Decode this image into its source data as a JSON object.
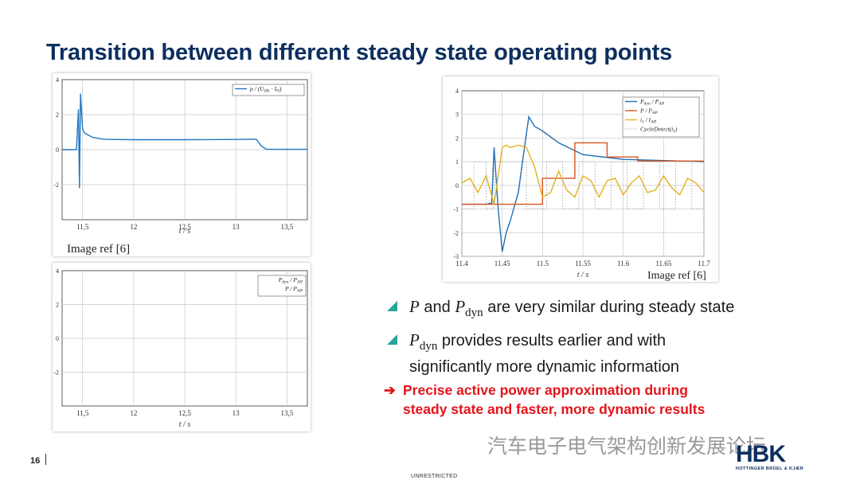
{
  "slide": {
    "title": "Transition between different steady state operating points",
    "page_number": "16",
    "classification": "UNRESTRICTED",
    "watermark": "汽车电子电气架构创新发展论坛",
    "logo": {
      "text": "HBK",
      "subtitle": "HOTTINGER BRÜEL & KJÆR"
    }
  },
  "bullets": [
    {
      "parts": [
        {
          "math": "P"
        },
        {
          "text": " and "
        },
        {
          "math": "P",
          "sub": "dyn"
        },
        {
          "text": " are very similar during steady state"
        }
      ]
    },
    {
      "parts": [
        {
          "math": "P",
          "sub": "dyn"
        },
        {
          "text": " provides results earlier and with"
        }
      ],
      "line2": "significantly more dynamic information"
    }
  ],
  "conclusion": {
    "arrow": "➔",
    "line1": "Precise active power approximation during",
    "line2": "steady state and faster, more dynamic results"
  },
  "image_refs": {
    "left": "Image ref [6]",
    "right": "Image ref [6]"
  },
  "chart_data": [
    {
      "type": "line",
      "xlabel": "t / s",
      "xlim": [
        11.3,
        13.7
      ],
      "ylim": [
        -4,
        4
      ],
      "xticks": [
        "11,5",
        "12",
        "12,5",
        "13",
        "13,5"
      ],
      "xtick_values": [
        11.5,
        12,
        12.5,
        13,
        13.5
      ],
      "yticks": [
        "4",
        "2",
        "0",
        "-2"
      ],
      "ytick_values": [
        4,
        2,
        0,
        -2
      ],
      "grid": true,
      "legend_position": "top-right",
      "series": [
        {
          "name": "p / (U_ZK · I_N)",
          "color": "#1f77c0",
          "x": [
            11.3,
            11.44,
            11.46,
            11.47,
            11.48,
            11.5,
            11.52,
            11.55,
            11.6,
            11.7,
            11.8,
            12.0,
            12.5,
            13.0,
            13.2,
            13.25,
            13.3,
            13.7
          ],
          "y": [
            0,
            0,
            2.3,
            -2.2,
            3.2,
            1.2,
            0.95,
            0.85,
            0.7,
            0.6,
            0.58,
            0.57,
            0.57,
            0.58,
            0.6,
            0.2,
            0.02,
            0.02
          ]
        }
      ]
    },
    {
      "type": "line",
      "xlabel": "t / s",
      "xlim": [
        11.3,
        13.7
      ],
      "ylim": [
        -4,
        4
      ],
      "xticks": [
        "11,5",
        "12",
        "12,5",
        "13",
        "13,5"
      ],
      "xtick_values": [
        11.5,
        12,
        12.5,
        13,
        13.5
      ],
      "yticks": [
        "4",
        "2",
        "0",
        "-2"
      ],
      "ytick_values": [
        4,
        2,
        0,
        -2
      ],
      "grid": true,
      "legend_position": "top-right",
      "series": [
        {
          "name": "P_dyn / P_AP",
          "color": "#000000",
          "x": [],
          "y": []
        },
        {
          "name": "P / P_AP",
          "color": "#000000",
          "x": [],
          "y": []
        }
      ]
    },
    {
      "type": "line",
      "xlabel": "t / s",
      "xlim": [
        11.4,
        11.7
      ],
      "ylim": [
        -3,
        4
      ],
      "xticks": [
        "11.4",
        "11.45",
        "11.5",
        "11.55",
        "11.6",
        "11.65",
        "11.7"
      ],
      "xtick_values": [
        11.4,
        11.45,
        11.5,
        11.55,
        11.6,
        11.65,
        11.7
      ],
      "yticks": [
        "4",
        "3",
        "2",
        "1",
        "0",
        "-1",
        "-2",
        "-3"
      ],
      "ytick_values": [
        4,
        3,
        2,
        1,
        0,
        -1,
        -2,
        -3
      ],
      "grid": true,
      "legend_position": "top-right",
      "series": [
        {
          "name": "P_dyn / P_AP",
          "color": "#1f6fb5",
          "x": [
            11.4,
            11.43,
            11.437,
            11.44,
            11.445,
            11.45,
            11.455,
            11.46,
            11.47,
            11.48,
            11.483,
            11.49,
            11.5,
            11.52,
            11.55,
            11.6,
            11.65,
            11.7
          ],
          "y": [
            -0.8,
            -0.8,
            -0.75,
            1.6,
            -1.0,
            -2.8,
            -2.0,
            -1.5,
            -0.3,
            2.2,
            2.9,
            2.5,
            2.3,
            1.8,
            1.3,
            1.1,
            1.05,
            1.0
          ]
        },
        {
          "name": "P / P_AP",
          "color": "#d9531e",
          "x": [
            11.4,
            11.5,
            11.5,
            11.54,
            11.54,
            11.58,
            11.58,
            11.618,
            11.618,
            11.7
          ],
          "y": [
            -0.8,
            -0.8,
            0.3,
            0.3,
            1.8,
            1.8,
            1.2,
            1.2,
            1.03,
            1.03
          ]
        },
        {
          "name": "i_1 / I_AP",
          "color": "#e5b020",
          "x": [
            11.4,
            11.41,
            11.42,
            11.43,
            11.44,
            11.45,
            11.455,
            11.46,
            11.47,
            11.48,
            11.49,
            11.5,
            11.51,
            11.52,
            11.53,
            11.54,
            11.55,
            11.56,
            11.57,
            11.58,
            11.59,
            11.6,
            11.61,
            11.62,
            11.63,
            11.64,
            11.65,
            11.66,
            11.67,
            11.68,
            11.69,
            11.7
          ],
          "y": [
            0.1,
            0.3,
            -0.3,
            0.4,
            -0.8,
            1.6,
            1.7,
            1.6,
            1.7,
            1.6,
            0.8,
            -0.5,
            -0.3,
            0.6,
            -0.2,
            -0.5,
            0.4,
            0.2,
            -0.5,
            0.2,
            0.3,
            -0.4,
            0.1,
            0.4,
            -0.3,
            -0.2,
            0.4,
            -0.1,
            -0.4,
            0.3,
            0.1,
            -0.3
          ]
        },
        {
          "name": "CycleDetect(i_1)",
          "color": "#999999",
          "dotted": true,
          "x": [
            11.4,
            11.415,
            11.415,
            11.43,
            11.43,
            11.44,
            11.44,
            11.48,
            11.48,
            11.505,
            11.505,
            11.525,
            11.525,
            11.545,
            11.545,
            11.565,
            11.565,
            11.585,
            11.585,
            11.605,
            11.605,
            11.625,
            11.625,
            11.645,
            11.645,
            11.665,
            11.665,
            11.685,
            11.685,
            11.7
          ],
          "y": [
            -1,
            -1,
            1,
            1,
            -1,
            -1,
            1,
            1,
            -1,
            -1,
            1,
            1,
            -1,
            -1,
            1,
            1,
            -1,
            -1,
            1,
            1,
            -1,
            -1,
            1,
            1,
            -1,
            -1,
            1,
            1,
            -1,
            -1
          ]
        }
      ]
    }
  ]
}
